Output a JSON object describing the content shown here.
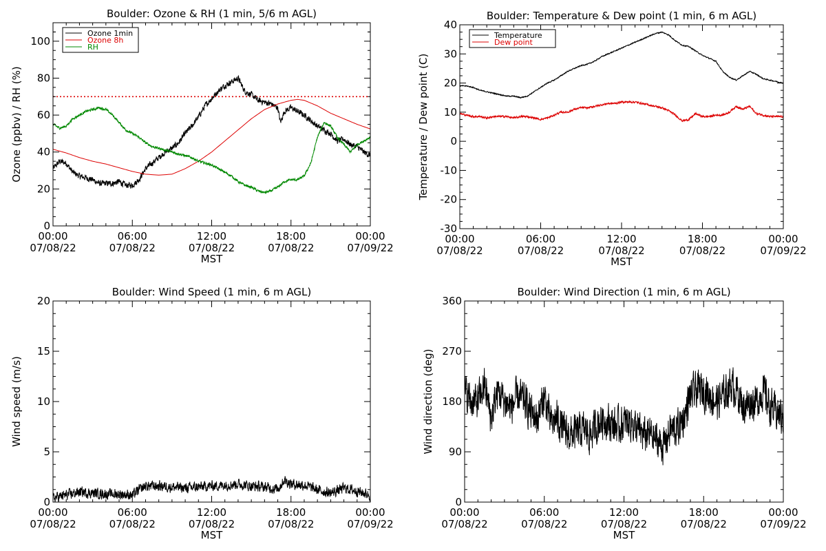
{
  "chart_data": [
    {
      "id": "ozone",
      "type": "line",
      "title": "Boulder: Ozone & RH (1 min, 5/6 m AGL)",
      "xlabel": "MST",
      "ylabel": "Ozone (ppbv) / RH (%)",
      "xlim": [
        0,
        24
      ],
      "ylim": [
        0,
        110
      ],
      "x_ticks": [
        0,
        6,
        12,
        18,
        24
      ],
      "x_tick_labels": [
        "00:00",
        "06:00",
        "12:00",
        "18:00",
        "00:00"
      ],
      "x_tick_dates": [
        "07/08/22",
        "07/08/22",
        "07/08/22",
        "07/08/22",
        "07/09/22"
      ],
      "y_ticks": [
        0,
        20,
        40,
        60,
        80,
        100
      ],
      "grid": false,
      "legend": "top-left",
      "reference_line": {
        "y": 70,
        "color": "#dd0000",
        "style": "dotted"
      },
      "series": [
        {
          "name": "Ozone 1min",
          "color": "#000000",
          "noise": 2.2,
          "x": [
            0,
            0.5,
            1,
            1.5,
            2,
            2.5,
            3,
            3.5,
            4,
            4.5,
            5,
            5.5,
            6,
            6.5,
            7,
            7.5,
            8,
            8.5,
            9,
            9.5,
            10,
            10.5,
            11,
            11.5,
            12,
            12.5,
            13,
            13.5,
            14,
            14.5,
            15,
            15.5,
            16,
            16.5,
            17,
            17.2,
            17.5,
            18,
            18.5,
            19,
            19.5,
            20,
            20.5,
            21,
            21.5,
            22,
            22.5,
            23,
            23.5,
            24
          ],
          "y": [
            31,
            35,
            34,
            29,
            27,
            26,
            25,
            23,
            23,
            23,
            24,
            22,
            22,
            25,
            31,
            34,
            37,
            40,
            42,
            45,
            50,
            54,
            59,
            65,
            69,
            73,
            76,
            78,
            80,
            73,
            71,
            68,
            67,
            66,
            64,
            56,
            62,
            64,
            62,
            60,
            57,
            54,
            52,
            50,
            46,
            47,
            44,
            43,
            40,
            38
          ]
        },
        {
          "name": "Ozone 8h",
          "color": "#dd0000",
          "noise": 0,
          "x": [
            0,
            1,
            2,
            3,
            4,
            5,
            6,
            7,
            8,
            9,
            10,
            11,
            12,
            13,
            14,
            15,
            16,
            17,
            18,
            18.5,
            19,
            20,
            21,
            22,
            23,
            24
          ],
          "y": [
            41.5,
            39.5,
            37,
            35,
            33.5,
            31.5,
            29.5,
            28,
            27.5,
            28,
            31,
            35,
            40,
            46,
            52,
            58,
            63,
            66,
            68,
            68.5,
            68,
            65,
            61,
            58,
            55,
            52.5
          ]
        },
        {
          "name": "RH",
          "color": "#008800",
          "noise": 0.9,
          "x": [
            0,
            0.5,
            1,
            1.5,
            2,
            2.5,
            3,
            3.5,
            4,
            4.5,
            5,
            5.5,
            6,
            6.5,
            7,
            7.5,
            8,
            8.5,
            9,
            9.5,
            10,
            10.5,
            11,
            11.5,
            12,
            12.5,
            13,
            13.5,
            14,
            14.5,
            15,
            15.5,
            16,
            16.5,
            17,
            17.5,
            18,
            18.5,
            19,
            19.5,
            20,
            20.5,
            21,
            21.5,
            22,
            22.5,
            23,
            23.5,
            24
          ],
          "y": [
            55,
            53,
            54,
            58,
            60,
            62,
            63,
            64,
            63,
            60,
            56,
            52,
            50,
            48,
            45,
            43,
            42,
            41,
            40,
            39,
            38,
            37,
            35,
            34,
            33,
            31,
            29,
            27,
            24,
            22,
            21,
            19,
            18,
            19,
            21,
            24,
            25,
            25,
            27,
            34,
            48,
            56,
            54,
            48,
            44,
            40,
            44,
            46,
            48
          ]
        }
      ]
    },
    {
      "id": "temp",
      "type": "line",
      "title": "Boulder: Temperature & Dew point (1 min, 6 m AGL)",
      "xlabel": "MST",
      "ylabel": "Temperature / Dew point (C)",
      "xlim": [
        0,
        24
      ],
      "ylim": [
        -30,
        40
      ],
      "x_ticks": [
        0,
        6,
        12,
        18,
        24
      ],
      "x_tick_labels": [
        "00:00",
        "06:00",
        "12:00",
        "18:00",
        "00:00"
      ],
      "x_tick_dates": [
        "07/08/22",
        "07/08/22",
        "07/08/22",
        "07/08/22",
        "07/09/22"
      ],
      "y_ticks": [
        -30,
        -20,
        -10,
        0,
        10,
        20,
        30,
        40
      ],
      "grid": false,
      "legend": "top-left",
      "series": [
        {
          "name": "Temperature",
          "color": "#000000",
          "noise": 0.25,
          "x": [
            0,
            0.5,
            1,
            1.5,
            2,
            2.5,
            3,
            3.5,
            4,
            4.5,
            5,
            5.5,
            6,
            6.5,
            7,
            7.5,
            8,
            8.5,
            9,
            9.5,
            10,
            10.5,
            11,
            11.5,
            12,
            12.5,
            13,
            13.5,
            14,
            14.5,
            15,
            15.5,
            16,
            16.5,
            17,
            17.5,
            18,
            18.5,
            19,
            19.5,
            20,
            20.5,
            21,
            21.5,
            22,
            22.5,
            23,
            23.5,
            24
          ],
          "y": [
            19,
            19,
            18.5,
            17.5,
            17,
            16.5,
            16,
            15.5,
            15.5,
            15,
            15.5,
            17,
            18.5,
            20,
            21,
            22.5,
            24,
            25,
            26,
            26.5,
            27.5,
            29,
            30,
            31,
            32,
            33,
            34,
            35,
            36,
            37,
            37.5,
            36.5,
            34.5,
            33,
            32.5,
            31,
            29.5,
            28.5,
            27.5,
            24,
            22,
            21,
            22.5,
            24,
            23,
            21.5,
            21,
            20.5,
            20
          ]
        },
        {
          "name": "Dew point",
          "color": "#dd0000",
          "noise": 0.45,
          "x": [
            0,
            0.5,
            1,
            1.5,
            2,
            2.5,
            3,
            3.5,
            4,
            4.5,
            5,
            5.5,
            6,
            6.5,
            7,
            7.5,
            8,
            8.5,
            9,
            9.5,
            10,
            10.5,
            11,
            11.5,
            12,
            12.5,
            13,
            13.5,
            14,
            14.5,
            15,
            15.5,
            16,
            16.5,
            17,
            17.5,
            18,
            18.5,
            19,
            19.5,
            20,
            20.5,
            21,
            21.5,
            22,
            22.5,
            23,
            23.5,
            24
          ],
          "y": [
            9.5,
            9,
            8.5,
            8.5,
            8,
            8.5,
            8.5,
            8.5,
            8,
            8.5,
            8.5,
            8,
            7.5,
            8,
            9,
            10,
            10,
            11,
            11.5,
            11.5,
            12,
            12.5,
            13,
            13,
            13.5,
            13.5,
            13.5,
            13,
            12.5,
            12,
            11.5,
            10.5,
            9,
            7,
            7.5,
            9.5,
            8.5,
            8.5,
            9,
            9,
            10,
            12,
            11,
            12,
            9.5,
            9,
            8.5,
            8.5,
            8.5
          ]
        }
      ]
    },
    {
      "id": "wspd",
      "type": "line",
      "title": "Boulder: Wind Speed (1 min, 6 m AGL)",
      "xlabel": "MST",
      "ylabel": "Wind speed (m/s)",
      "xlim": [
        0,
        24
      ],
      "ylim": [
        0,
        20
      ],
      "x_ticks": [
        0,
        6,
        12,
        18,
        24
      ],
      "x_tick_labels": [
        "00:00",
        "06:00",
        "12:00",
        "18:00",
        "00:00"
      ],
      "x_tick_dates": [
        "07/08/22",
        "07/08/22",
        "07/08/22",
        "07/08/22",
        "07/09/22"
      ],
      "y_ticks": [
        0,
        5,
        10,
        15,
        20
      ],
      "grid": false,
      "legend": "none",
      "series": [
        {
          "color": "#000000",
          "noise": 0.7,
          "x": [
            0,
            1,
            2,
            3,
            4,
            5,
            6,
            6.5,
            7,
            8,
            9,
            10,
            11,
            12,
            13,
            14,
            15,
            16,
            17,
            17.5,
            18,
            19,
            20,
            21,
            22,
            23,
            24
          ],
          "y": [
            0.4,
            0.7,
            1.0,
            0.9,
            0.8,
            0.8,
            0.7,
            1.2,
            1.6,
            1.6,
            1.5,
            1.4,
            1.5,
            1.6,
            1.7,
            1.8,
            1.6,
            1.5,
            1.3,
            2.2,
            1.8,
            1.7,
            1.2,
            0.9,
            1.4,
            1.1,
            0.7
          ]
        }
      ]
    },
    {
      "id": "wdir",
      "type": "line",
      "title": "Boulder: Wind Direction (1 min, 6 m AGL)",
      "xlabel": "MST",
      "ylabel": "Wind direction (deg)",
      "xlim": [
        0,
        24
      ],
      "ylim": [
        0,
        360
      ],
      "x_ticks": [
        0,
        6,
        12,
        18,
        24
      ],
      "x_tick_labels": [
        "00:00",
        "06:00",
        "12:00",
        "18:00",
        "00:00"
      ],
      "x_tick_dates": [
        "07/08/22",
        "07/08/22",
        "07/08/22",
        "07/08/22",
        "07/09/22"
      ],
      "y_ticks": [
        0,
        90,
        180,
        270,
        360
      ],
      "grid": false,
      "legend": "none",
      "series": [
        {
          "color": "#000000",
          "noise": 45,
          "x": [
            0,
            0.5,
            1,
            1.5,
            2,
            2.5,
            3,
            3.5,
            4,
            4.5,
            5,
            5.5,
            6,
            6.5,
            7,
            7.5,
            8,
            8.5,
            9,
            9.5,
            10,
            10.5,
            11,
            11.5,
            12,
            12.5,
            13,
            13.5,
            14,
            14.5,
            15,
            15.5,
            16,
            16.5,
            17,
            17.5,
            18,
            18.5,
            19,
            19.5,
            20,
            20.5,
            21,
            21.5,
            22,
            22.5,
            23,
            23.5,
            24
          ],
          "y": [
            200,
            180,
            180,
            210,
            150,
            200,
            180,
            170,
            190,
            180,
            160,
            150,
            190,
            140,
            150,
            125,
            120,
            125,
            130,
            120,
            140,
            150,
            140,
            135,
            140,
            145,
            130,
            120,
            120,
            110,
            100,
            130,
            130,
            150,
            190,
            200,
            200,
            190,
            180,
            190,
            210,
            200,
            170,
            180,
            180,
            200,
            170,
            160,
            150
          ]
        }
      ]
    }
  ]
}
